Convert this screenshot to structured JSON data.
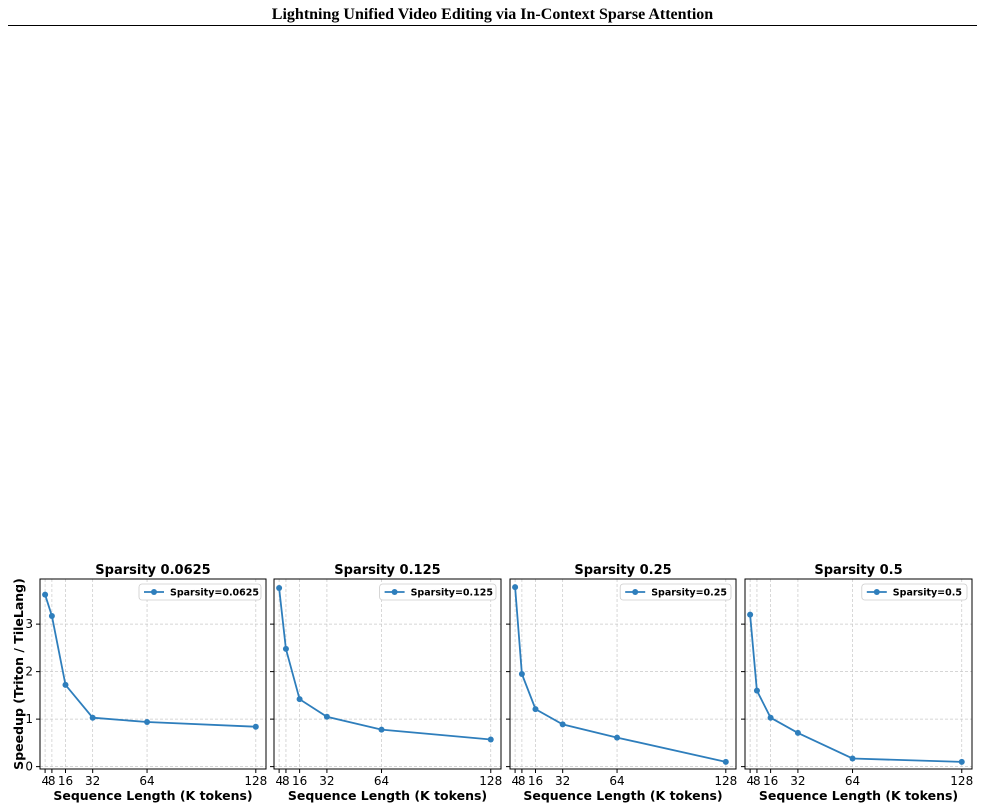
{
  "header": {
    "title": "Lightning Unified Video Editing via In-Context Sparse Attention"
  },
  "style": {
    "line_color": "#2e7ebc",
    "grid_color": "#c8c8c8",
    "axis_color": "#000000"
  },
  "chart_data": [
    {
      "type": "line",
      "title": "Sparsity 0.0625",
      "xlabel": "Sequence Length (K tokens)",
      "ylabel": "Speedup (Triton / TileLang)",
      "xticks": [
        4,
        8,
        16,
        32,
        64,
        128
      ],
      "xtick_labels": [
        "4",
        "8",
        "16",
        "32",
        "64",
        "128"
      ],
      "yticks": [
        0,
        1,
        2,
        3
      ],
      "ytick_labels": [
        "0",
        "1",
        "2",
        "3"
      ],
      "xlim": [
        1,
        134
      ],
      "ylim": [
        -0.05,
        3.95
      ],
      "grid": true,
      "legend_position": "top-right",
      "series": [
        {
          "name": "Sparsity=0.0625",
          "x": [
            4,
            8,
            16,
            32,
            64,
            128
          ],
          "y": [
            3.62,
            3.17,
            1.72,
            1.03,
            0.94,
            0.84
          ]
        }
      ]
    },
    {
      "type": "line",
      "title": "Sparsity 0.125",
      "xlabel": "Sequence Length (K tokens)",
      "ylabel": "",
      "xticks": [
        4,
        8,
        16,
        32,
        64,
        128
      ],
      "xtick_labels": [
        "4",
        "8",
        "16",
        "32",
        "64",
        "128"
      ],
      "yticks": [
        0,
        1,
        2,
        3
      ],
      "ytick_labels": [
        "",
        "",
        "",
        ""
      ],
      "xlim": [
        1,
        134
      ],
      "ylim": [
        -0.05,
        3.95
      ],
      "grid": true,
      "legend_position": "top-right",
      "series": [
        {
          "name": "Sparsity=0.125",
          "x": [
            4,
            8,
            16,
            32,
            64,
            128
          ],
          "y": [
            3.76,
            2.48,
            1.42,
            1.05,
            0.78,
            0.57
          ]
        }
      ]
    },
    {
      "type": "line",
      "title": "Sparsity 0.25",
      "xlabel": "Sequence Length (K tokens)",
      "ylabel": "",
      "xticks": [
        4,
        8,
        16,
        32,
        64,
        128
      ],
      "xtick_labels": [
        "4",
        "8",
        "16",
        "32",
        "64",
        "128"
      ],
      "yticks": [
        0,
        1,
        2,
        3
      ],
      "ytick_labels": [
        "",
        "",
        "",
        ""
      ],
      "xlim": [
        1,
        134
      ],
      "ylim": [
        -0.05,
        3.95
      ],
      "grid": true,
      "legend_position": "top-right",
      "series": [
        {
          "name": "Sparsity=0.25",
          "x": [
            4,
            8,
            16,
            32,
            64,
            128
          ],
          "y": [
            3.78,
            1.95,
            1.21,
            0.89,
            0.61,
            0.1
          ]
        }
      ]
    },
    {
      "type": "line",
      "title": "Sparsity 0.5",
      "xlabel": "Sequence Length (K tokens)",
      "ylabel": "",
      "xticks": [
        4,
        8,
        16,
        32,
        64,
        128
      ],
      "xtick_labels": [
        "4",
        "8",
        "16",
        "32",
        "64",
        "128"
      ],
      "yticks": [
        0,
        1,
        2,
        3
      ],
      "ytick_labels": [
        "",
        "",
        "",
        ""
      ],
      "xlim": [
        1,
        134
      ],
      "ylim": [
        -0.05,
        3.95
      ],
      "grid": true,
      "legend_position": "top-right",
      "series": [
        {
          "name": "Sparsity=0.5",
          "x": [
            4,
            8,
            16,
            32,
            64,
            128
          ],
          "y": [
            3.2,
            1.6,
            1.03,
            0.71,
            0.17,
            0.1
          ]
        }
      ]
    }
  ]
}
